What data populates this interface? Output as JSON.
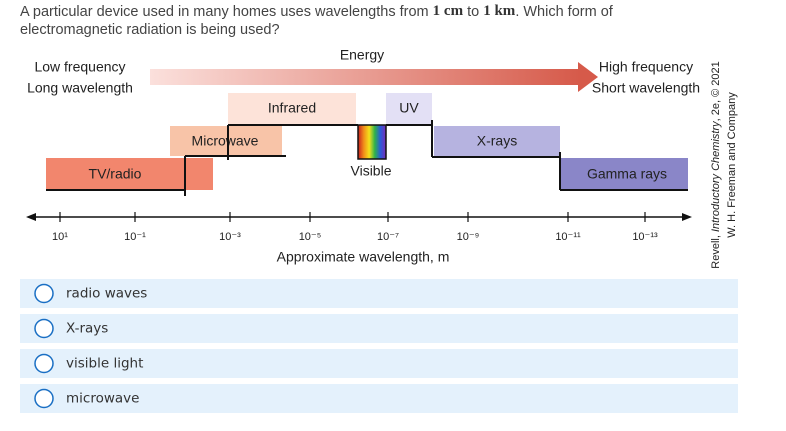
{
  "question": {
    "parts": [
      "A particular device used in many homes uses wavelengths from ",
      "1 cm",
      " to ",
      "1 km",
      ". Which form of",
      "electromagnetic radiation is being used?"
    ]
  },
  "diagram": {
    "energy": "Energy",
    "low": [
      "Low frequency",
      "Long wavelength"
    ],
    "high": [
      "High frequency",
      "Short wavelength"
    ],
    "bands": {
      "infrared": "Infrared",
      "uv": "UV",
      "microwave": "Microwave",
      "xrays": "X-rays",
      "tvradio": "TV/radio",
      "gamma": "Gamma rays",
      "visible": "Visible"
    },
    "ticks": [
      "10¹",
      "10⁻¹",
      "10⁻³",
      "10⁻⁵",
      "10⁻⁷",
      "10⁻⁹",
      "10⁻¹¹",
      "10⁻¹³"
    ],
    "axis_label": "Approximate wavelength, m",
    "credit": [
      "Revell, ",
      "Introductory Chemistry",
      ", 2e, © 2021",
      "W. H. Freeman and Company"
    ]
  },
  "options": [
    "radio waves",
    "X-rays",
    "visible light",
    "microwave"
  ]
}
